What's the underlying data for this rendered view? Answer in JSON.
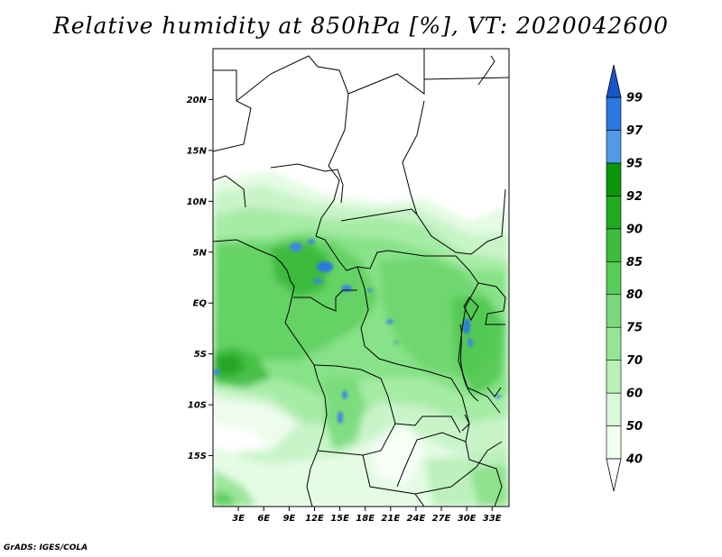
{
  "title": "Relative humidity at 850hPa [%], VT: 2020042600",
  "credit": "GrADS: IGES/COLA",
  "map": {
    "lon_range": [
      0,
      35
    ],
    "lat_range": [
      -20,
      25
    ],
    "lat_ticks": [
      {
        "lat": 20,
        "label": "20N"
      },
      {
        "lat": 15,
        "label": "15N"
      },
      {
        "lat": 10,
        "label": "10N"
      },
      {
        "lat": 5,
        "label": "5N"
      },
      {
        "lat": 0,
        "label": "EQ"
      },
      {
        "lat": -5,
        "label": "5S"
      },
      {
        "lat": -10,
        "label": "10S"
      },
      {
        "lat": -15,
        "label": "15S"
      }
    ],
    "lon_ticks": [
      {
        "lon": 3,
        "label": "3E"
      },
      {
        "lon": 6,
        "label": "6E"
      },
      {
        "lon": 9,
        "label": "9E"
      },
      {
        "lon": 12,
        "label": "12E"
      },
      {
        "lon": 15,
        "label": "15E"
      },
      {
        "lon": 18,
        "label": "18E"
      },
      {
        "lon": 21,
        "label": "21E"
      },
      {
        "lon": 24,
        "label": "24E"
      },
      {
        "lon": 27,
        "label": "27E"
      },
      {
        "lon": 30,
        "label": "30E"
      },
      {
        "lon": 33,
        "label": "33E"
      }
    ]
  },
  "legend": {
    "levels": [
      "40",
      "50",
      "60",
      "70",
      "75",
      "80",
      "85",
      "90",
      "92",
      "95",
      "97",
      "99"
    ],
    "colors": [
      "#f0fff0",
      "#d8fad8",
      "#b8f1b8",
      "#96e596",
      "#7ad97a",
      "#58cc58",
      "#3cbd3c",
      "#20aa20",
      "#0c960c",
      "#4f9be8",
      "#2a78e0",
      "#1557c9"
    ],
    "below_color": "#ffffff",
    "above_color": "#1557c9"
  }
}
